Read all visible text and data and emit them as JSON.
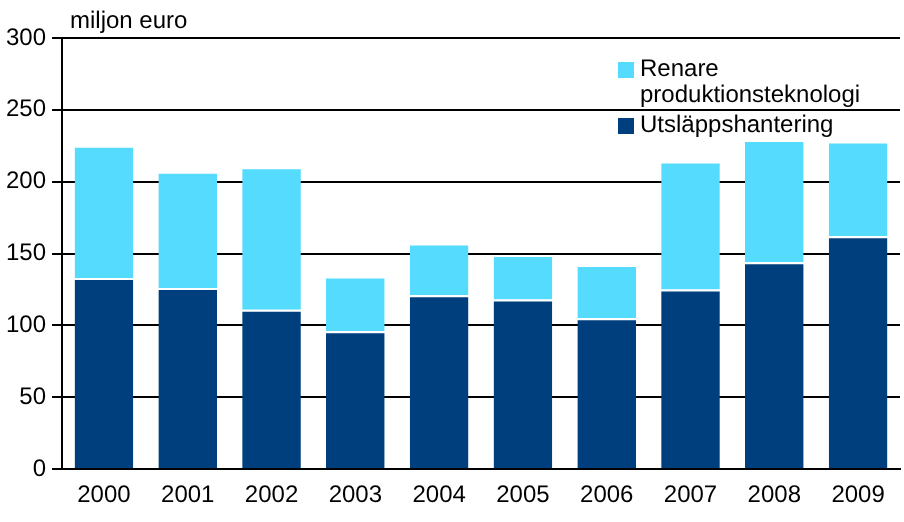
{
  "chart_data": {
    "type": "bar",
    "ylabel": "miljon euro",
    "stacked": true,
    "legend": "top right",
    "grid": "y",
    "categories": [
      "2000",
      "2001",
      "2002",
      "2003",
      "2004",
      "2005",
      "2006",
      "2007",
      "2008",
      "2009"
    ],
    "series": [
      {
        "name": "Utsläppshantering",
        "color": "#003f7d",
        "values": [
          133,
          126,
          111,
          96,
          121,
          118,
          105,
          125,
          144,
          162
        ]
      },
      {
        "name": "Renare produktionsteknologi",
        "color": "#55dbfd",
        "values": [
          92,
          81,
          99,
          38,
          36,
          31,
          37,
          89,
          85,
          66
        ]
      }
    ],
    "ylim": [
      0,
      300
    ],
    "yticks": [
      0,
      50,
      100,
      150,
      200,
      250,
      300
    ]
  }
}
